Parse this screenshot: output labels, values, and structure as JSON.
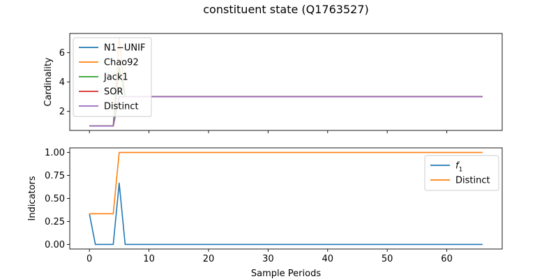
{
  "figure": {
    "title": "constituent state (Q1763527)"
  },
  "chart_data": [
    {
      "type": "line",
      "ylabel": "Cardinality",
      "xlabel": "",
      "xlim": [
        -3.3,
        69.3
      ],
      "ylim": [
        0.7,
        7.3
      ],
      "xticks": [
        0,
        10,
        20,
        30,
        40,
        50,
        60
      ],
      "xtick_labels_visible": false,
      "yticks": [
        2,
        4,
        6
      ],
      "ytick_labels": [
        "2",
        "4",
        "6"
      ],
      "legend_position": "upper-left",
      "series": [
        {
          "name": "N1−UNIF",
          "color": "#1f77b4",
          "points": [
            [
              0,
              1
            ],
            [
              4,
              1
            ],
            [
              5,
              3
            ],
            [
              66,
              3
            ]
          ]
        },
        {
          "name": "Chao92",
          "color": "#ff7f0e",
          "points": [
            [
              0,
              1
            ],
            [
              4,
              1
            ],
            [
              5,
              7
            ],
            [
              6,
              3
            ],
            [
              66,
              3
            ]
          ]
        },
        {
          "name": "Jack1",
          "color": "#2ca02c",
          "points": [
            [
              0,
              1
            ],
            [
              4,
              1
            ],
            [
              5,
              5
            ],
            [
              6,
              3
            ],
            [
              66,
              3
            ]
          ]
        },
        {
          "name": "SOR",
          "color": "#d62728",
          "points": [
            [
              0,
              1
            ],
            [
              4,
              1
            ],
            [
              5,
              3
            ],
            [
              66,
              3
            ]
          ]
        },
        {
          "name": "Distinct",
          "color": "#9467bd",
          "points": [
            [
              0,
              1
            ],
            [
              4,
              1
            ],
            [
              5,
              3
            ],
            [
              66,
              3
            ]
          ]
        }
      ]
    },
    {
      "type": "line",
      "ylabel": "Indicators",
      "xlabel": "Sample Periods",
      "xlim": [
        -3.3,
        69.3
      ],
      "ylim": [
        -0.05,
        1.05
      ],
      "xticks": [
        0,
        10,
        20,
        30,
        40,
        50,
        60
      ],
      "xtick_labels": [
        "0",
        "10",
        "20",
        "30",
        "40",
        "50",
        "60"
      ],
      "yticks": [
        0.0,
        0.25,
        0.5,
        0.75,
        1.0
      ],
      "ytick_labels": [
        "0.00",
        "0.25",
        "0.50",
        "0.75",
        "1.00"
      ],
      "legend_position": "upper-right",
      "series": [
        {
          "name": "f1",
          "legend_main": "f",
          "legend_sub": "1",
          "color": "#1f77b4",
          "points": [
            [
              0,
              0.3333
            ],
            [
              1,
              0
            ],
            [
              4,
              0
            ],
            [
              5,
              0.6667
            ],
            [
              6,
              0
            ],
            [
              66,
              0
            ]
          ]
        },
        {
          "name": "Distinct",
          "color": "#ff7f0e",
          "points": [
            [
              0,
              0.3333
            ],
            [
              4,
              0.3333
            ],
            [
              5,
              1
            ],
            [
              66,
              1
            ]
          ]
        }
      ]
    }
  ]
}
